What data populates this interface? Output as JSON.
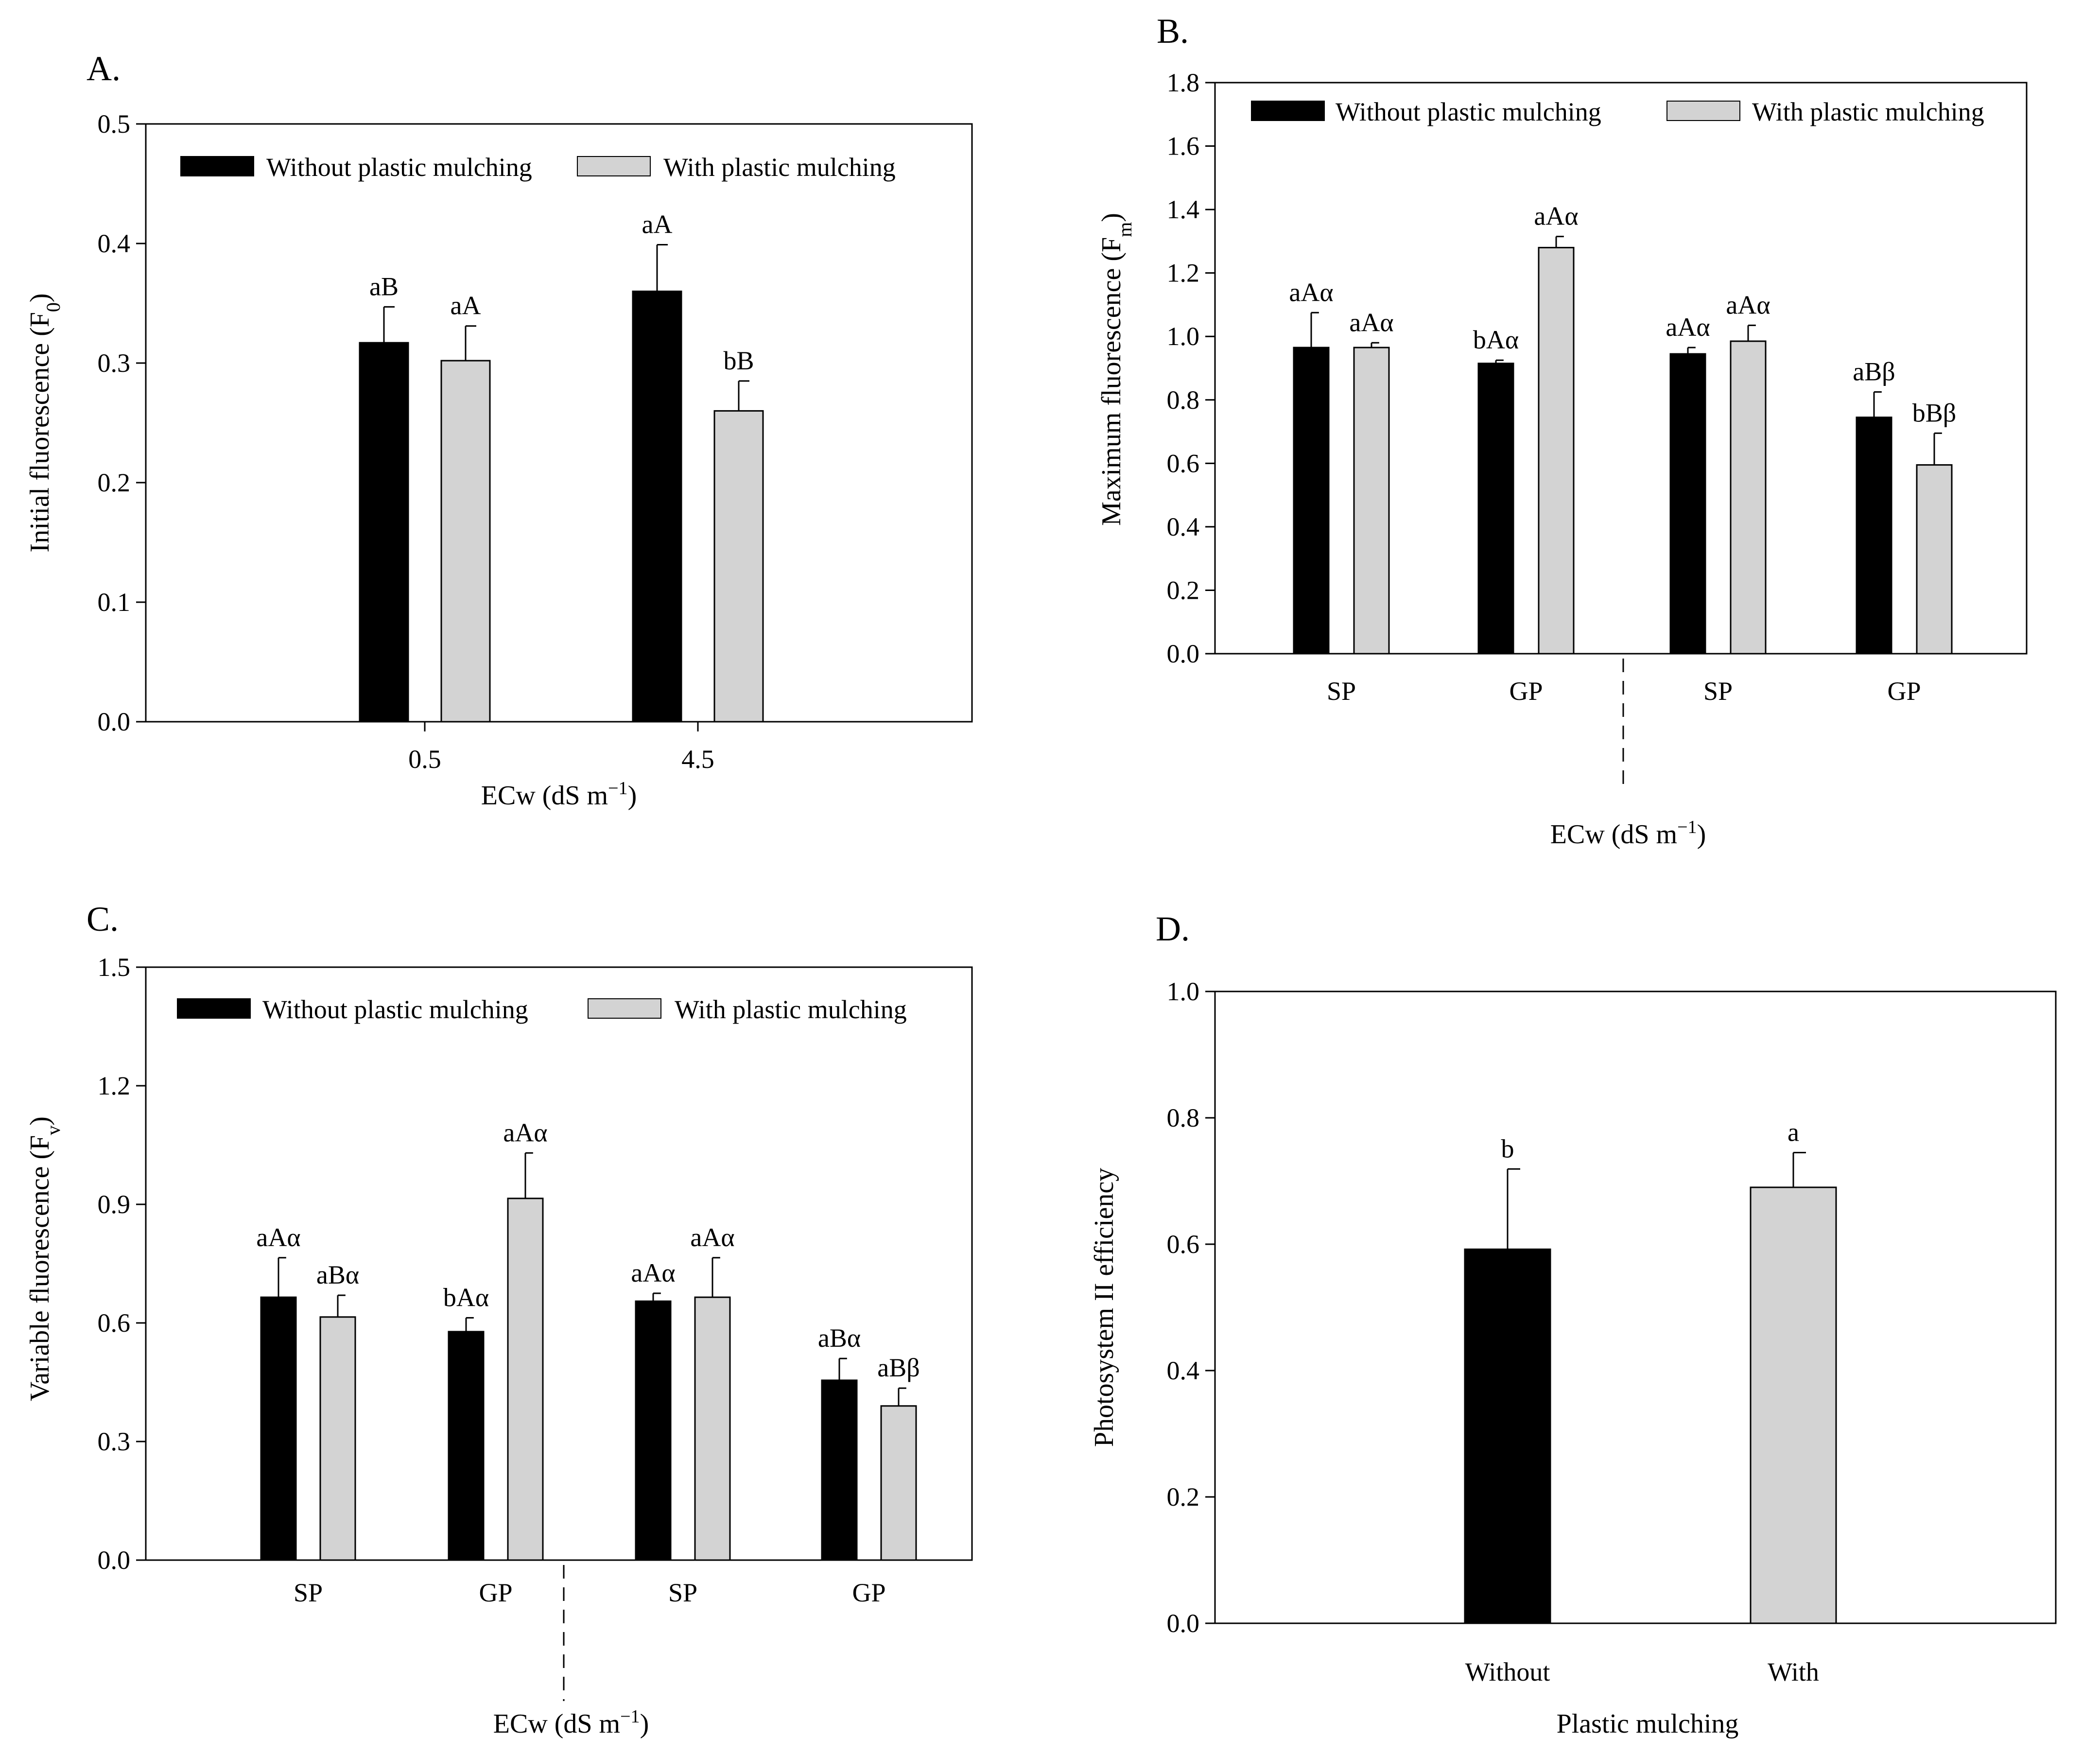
{
  "figure": {
    "colors": {
      "without": "#000000",
      "with": "#d3d3d3",
      "axis": "#000000"
    }
  },
  "chart_data": [
    {
      "id": "A",
      "type": "bar",
      "panel_label": "A.",
      "ylabel": "Initial fluorescence (F",
      "ylabel_sub": "0",
      "ylabel_end": ")",
      "xlabel": "ECw (dS m",
      "xlabel_sup": "−1",
      "xlabel_end": ")",
      "ylim": [
        0,
        0.5
      ],
      "yticks": [
        "0.0",
        "0.1",
        "0.2",
        "0.3",
        "0.4",
        "0.5"
      ],
      "categories": [
        "0.5",
        "4.5"
      ],
      "legend": [
        "Without plastic mulching",
        "With plastic mulching"
      ],
      "series": [
        {
          "name": "Without plastic mulching",
          "values": [
            0.317,
            0.36
          ],
          "errors": [
            0.03,
            0.039
          ],
          "labels": [
            "aB",
            "aA"
          ]
        },
        {
          "name": "With plastic mulching",
          "values": [
            0.302,
            0.26
          ],
          "errors": [
            0.029,
            0.025
          ],
          "labels": [
            "aA",
            "bB"
          ]
        }
      ]
    },
    {
      "id": "B",
      "type": "bar",
      "panel_label": "B.",
      "ylabel": "Maximum fluorescence (F",
      "ylabel_sub": "m",
      "ylabel_end": ")",
      "xlabel": "ECw (dS m",
      "xlabel_sup": "−1",
      "xlabel_end": ")",
      "ylim": [
        0,
        1.8
      ],
      "yticks": [
        "0.0",
        "0.2",
        "0.4",
        "0.6",
        "0.8",
        "1.0",
        "1.2",
        "1.4",
        "1.6",
        "1.8"
      ],
      "categories": [
        "SP",
        "GP",
        "SP",
        "GP"
      ],
      "legend": [
        "Without plastic mulching",
        "With plastic mulching"
      ],
      "series": [
        {
          "name": "Without plastic mulching",
          "values": [
            0.965,
            0.915,
            0.945,
            0.745
          ],
          "errors": [
            0.11,
            0.01,
            0.02,
            0.08
          ],
          "labels": [
            "aAα",
            "bAα",
            "aAα",
            "aBβ"
          ]
        },
        {
          "name": "With plastic mulching",
          "values": [
            0.965,
            1.28,
            0.985,
            0.595
          ],
          "errors": [
            0.015,
            0.035,
            0.05,
            0.1
          ],
          "labels": [
            "aAα",
            "aAα",
            "aAα",
            "bBβ"
          ]
        }
      ]
    },
    {
      "id": "C",
      "type": "bar",
      "panel_label": "C.",
      "ylabel": "Variable fluorescence (F",
      "ylabel_sub": "v",
      "ylabel_end": ")",
      "xlabel": "ECw (dS m",
      "xlabel_sup": "−1",
      "xlabel_end": ")",
      "ylim": [
        0,
        1.5
      ],
      "yticks": [
        "0.0",
        "0.3",
        "0.6",
        "0.9",
        "1.2",
        "1.5"
      ],
      "categories": [
        "SP",
        "GP",
        "SP",
        "GP"
      ],
      "legend": [
        "Without plastic mulching",
        "With plastic mulching"
      ],
      "series": [
        {
          "name": "Without plastic mulching",
          "values": [
            0.665,
            0.578,
            0.655,
            0.455
          ],
          "errors": [
            0.1,
            0.035,
            0.02,
            0.055
          ],
          "labels": [
            "aAα",
            "bAα",
            "aAα",
            "aBα"
          ]
        },
        {
          "name": "With plastic mulching",
          "values": [
            0.615,
            0.915,
            0.665,
            0.39
          ],
          "errors": [
            0.055,
            0.115,
            0.1,
            0.045
          ],
          "labels": [
            "aBα",
            "aAα",
            "aAα",
            "aBβ"
          ]
        }
      ]
    },
    {
      "id": "D",
      "type": "bar",
      "panel_label": "D.",
      "ylabel": "Photosystem II efficiency",
      "xlabel": "Plastic mulching",
      "ylim": [
        0,
        1.0
      ],
      "yticks": [
        "0.0",
        "0.2",
        "0.4",
        "0.6",
        "0.8",
        "1.0"
      ],
      "categories": [
        "Without",
        "With"
      ],
      "values": [
        0.592,
        0.69
      ],
      "errors": [
        0.127,
        0.055
      ],
      "labels": [
        "b",
        "a"
      ]
    }
  ]
}
